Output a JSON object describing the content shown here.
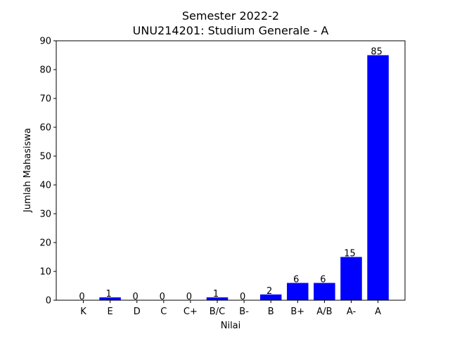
{
  "chart_data": {
    "type": "bar",
    "title_line1": "Semester 2022-2",
    "title_line2": "UNU214201: Studium Generale - A",
    "xlabel": "Nilai",
    "ylabel": "Jumlah Mahasiswa",
    "categories": [
      "K",
      "E",
      "D",
      "C",
      "C+",
      "B/C",
      "B-",
      "B",
      "B+",
      "A/B",
      "A-",
      "A"
    ],
    "values": [
      0,
      1,
      0,
      0,
      0,
      1,
      0,
      2,
      6,
      6,
      15,
      85
    ],
    "data_labels": [
      "0",
      "1",
      "0",
      "0",
      "0",
      "1",
      "0",
      "2",
      "6",
      "6",
      "15",
      "85"
    ],
    "ylim": [
      0,
      90
    ],
    "yticks": [
      0,
      10,
      20,
      30,
      40,
      50,
      60,
      70,
      80,
      90
    ],
    "grid": false,
    "bar_color": "#0000ff"
  }
}
